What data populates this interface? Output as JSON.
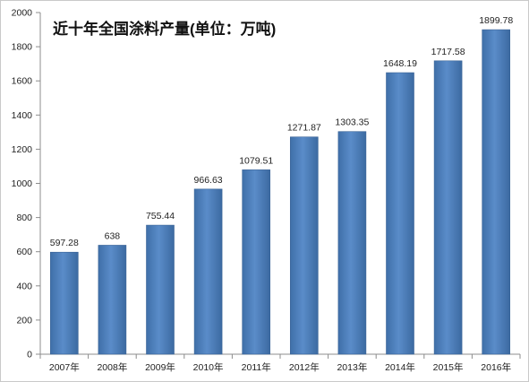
{
  "chart_data": {
    "type": "bar",
    "title": "近十年全国涂料产量(单位：万吨)",
    "xlabel": "",
    "ylabel": "",
    "categories": [
      "2007年",
      "2008年",
      "2009年",
      "2010年",
      "2011年",
      "2012年",
      "2013年",
      "2014年",
      "2015年",
      "2016年"
    ],
    "values": [
      597.28,
      638,
      755.44,
      966.63,
      1079.51,
      1271.87,
      1303.35,
      1648.19,
      1717.58,
      1899.78
    ],
    "ylim": [
      0,
      2000
    ],
    "ytick_step": 200,
    "grid": false,
    "legend": "none",
    "bar_color": "#4f81bd"
  }
}
